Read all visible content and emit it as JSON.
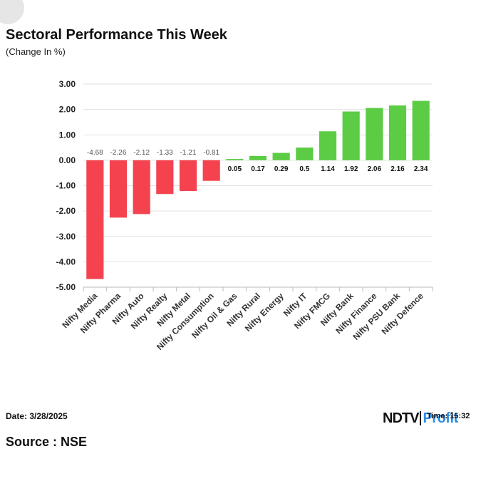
{
  "colors": {
    "negative": "#f4424f",
    "positive": "#5ccc45",
    "grid": "#e2e2e2",
    "profit": "#2e8ee8"
  },
  "chart_data": {
    "type": "bar",
    "title": "Sectoral Performance This Week",
    "subtitle": "(Change In %)",
    "xlabel": "",
    "ylabel": "",
    "ylim": [
      -5,
      3
    ],
    "yticks": [
      "3.00",
      "2.00",
      "1.00",
      "0.00",
      "-1.00",
      "-2.00",
      "-3.00",
      "-4.00",
      "-5.00"
    ],
    "ytick_values": [
      3,
      2,
      1,
      0,
      -1,
      -2,
      -3,
      -4,
      -5
    ],
    "grid": true,
    "categories": [
      "Nifty Media",
      "Nifty Pharma",
      "Nifty Auto",
      "Nifty Realty",
      "Nifty Metal",
      "Nifty Consumption",
      "Nifty Oil & Gas",
      "Nifty Rural",
      "Nifty Energy",
      "Nifty IT",
      "Nifty FMCG",
      "Nifty Bank",
      "Nifty Finance",
      "Nifty PSU Bank",
      "Nifty Defence"
    ],
    "values": [
      -4.68,
      -2.26,
      -2.12,
      -1.33,
      -1.21,
      -0.81,
      0.05,
      0.17,
      0.29,
      0.5,
      1.14,
      1.92,
      2.06,
      2.16,
      2.34
    ],
    "value_labels": [
      "-4.68",
      "-2.26",
      "-2.12",
      "-1.33",
      "-1.21",
      "-0.81",
      "0.05",
      "0.17",
      "0.29",
      "0.5",
      "1.14",
      "1.92",
      "2.06",
      "2.16",
      "2.34"
    ]
  },
  "footer": {
    "date": "Date: 3/28/2025",
    "source": "Source : NSE",
    "logo_ndtv": "NDTV",
    "logo_profit": "Profit",
    "time": "Time: 15:32"
  }
}
